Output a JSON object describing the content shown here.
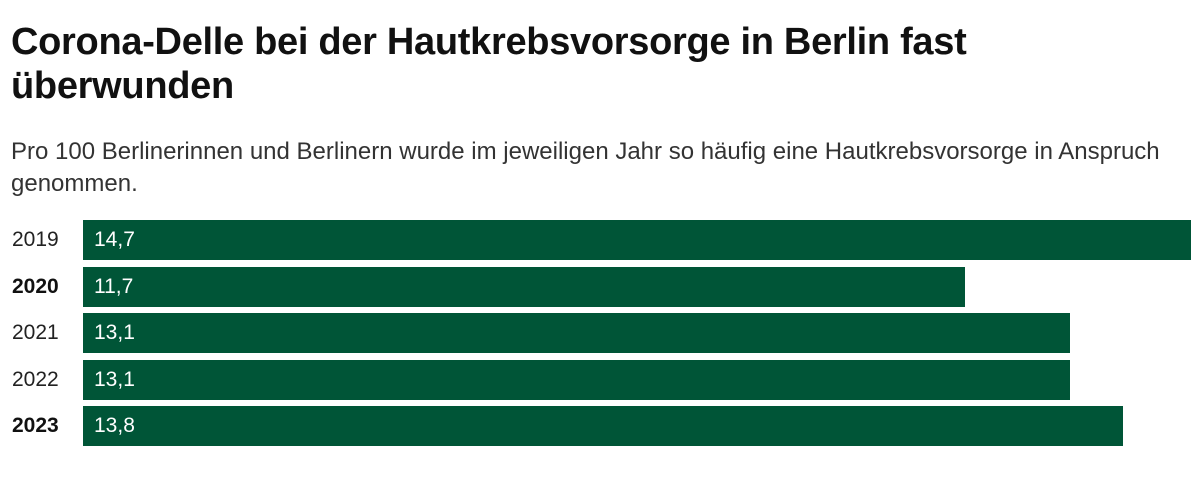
{
  "title": "Corona-Delle bei der Hautkrebsvorsorge in Berlin fast überwunden",
  "subtitle": "Pro 100 Berlinerinnen und Berlinern wurde im jeweiligen Jahr so häufig eine Hautkrebsvorsorge in Anspruch genommen.",
  "colors": {
    "bar": "#005537",
    "bar_label": "#ffffff"
  },
  "chart_data": {
    "type": "bar",
    "orientation": "horizontal",
    "categories": [
      "2019",
      "2020",
      "2021",
      "2022",
      "2023"
    ],
    "bold_categories": [
      "2020",
      "2023"
    ],
    "values": [
      14.7,
      11.7,
      13.1,
      13.1,
      13.8
    ],
    "value_labels": [
      "14,7",
      "11,7",
      "13,1",
      "13,1",
      "13,8"
    ],
    "xlim": [
      0,
      14.7
    ],
    "grid": false,
    "legend": "none"
  }
}
